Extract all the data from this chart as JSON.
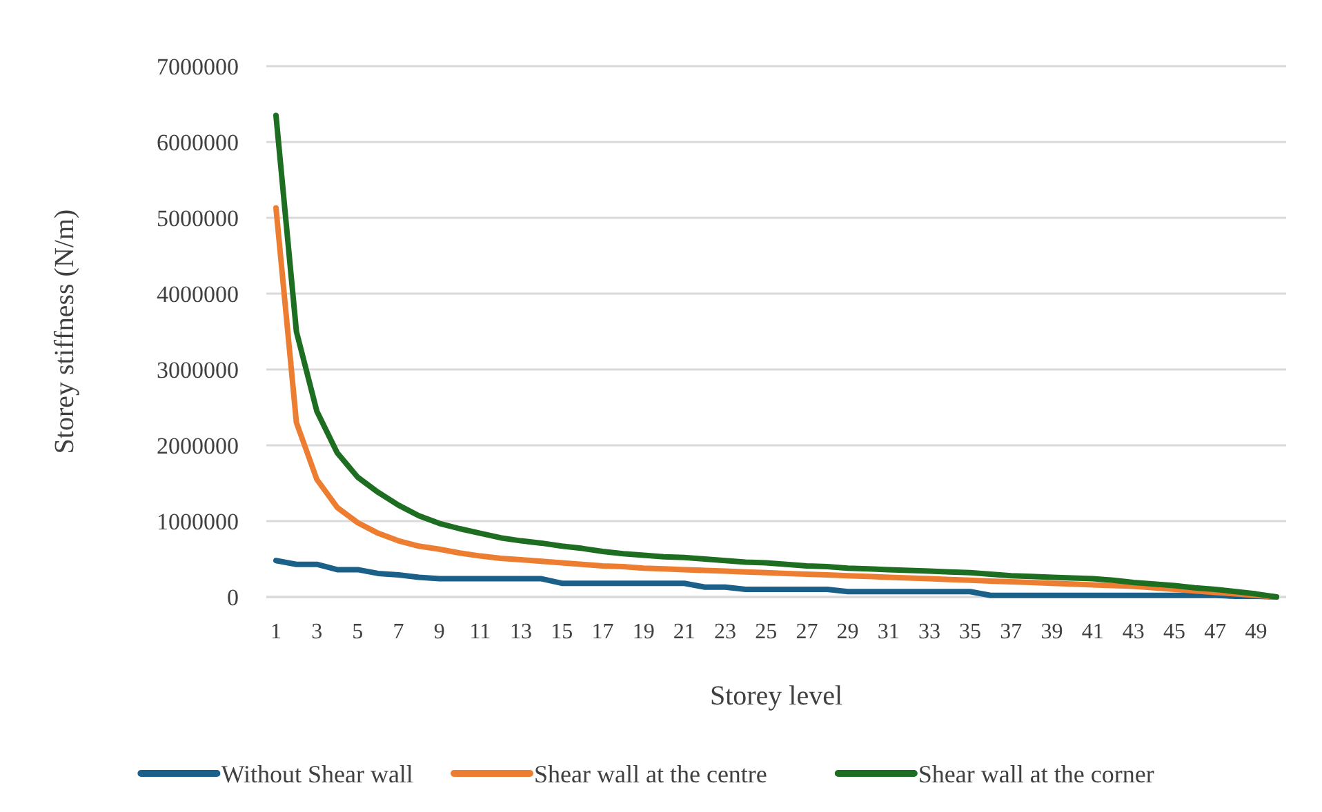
{
  "chart_data": {
    "type": "line",
    "xlabel": "Storey level",
    "ylabel": "Storey stiffness (N/m)",
    "x": [
      1,
      2,
      3,
      4,
      5,
      6,
      7,
      8,
      9,
      10,
      11,
      12,
      13,
      14,
      15,
      16,
      17,
      18,
      19,
      20,
      21,
      22,
      23,
      24,
      25,
      26,
      27,
      28,
      29,
      30,
      31,
      32,
      33,
      34,
      35,
      36,
      37,
      38,
      39,
      40,
      41,
      42,
      43,
      44,
      45,
      46,
      47,
      48,
      49,
      50
    ],
    "xlim": [
      1,
      50
    ],
    "xticks": [
      1,
      3,
      5,
      7,
      9,
      11,
      13,
      15,
      17,
      19,
      21,
      23,
      25,
      27,
      29,
      31,
      33,
      35,
      37,
      39,
      41,
      43,
      45,
      47,
      49
    ],
    "series": [
      {
        "name": "Without Shear wall",
        "color": "#1b6089",
        "values": [
          480000,
          430000,
          430000,
          360000,
          360000,
          310000,
          290000,
          260000,
          240000,
          240000,
          240000,
          240000,
          240000,
          240000,
          180000,
          180000,
          180000,
          180000,
          180000,
          180000,
          180000,
          130000,
          130000,
          100000,
          100000,
          100000,
          100000,
          100000,
          70000,
          70000,
          70000,
          70000,
          70000,
          70000,
          70000,
          20000,
          20000,
          20000,
          20000,
          20000,
          20000,
          20000,
          20000,
          20000,
          20000,
          20000,
          20000,
          10000,
          10000,
          0
        ]
      },
      {
        "name": "Shear wall at the centre",
        "color": "#ed7d31",
        "values": [
          5130000,
          2300000,
          1550000,
          1180000,
          980000,
          840000,
          740000,
          670000,
          630000,
          580000,
          540000,
          510000,
          490000,
          470000,
          450000,
          430000,
          410000,
          400000,
          380000,
          370000,
          360000,
          350000,
          340000,
          330000,
          320000,
          310000,
          300000,
          290000,
          280000,
          270000,
          260000,
          250000,
          240000,
          230000,
          220000,
          210000,
          200000,
          190000,
          180000,
          170000,
          160000,
          150000,
          140000,
          120000,
          100000,
          80000,
          60000,
          40000,
          20000,
          0
        ]
      },
      {
        "name": "Shear wall at the corner",
        "color": "#1e6e21",
        "values": [
          6350000,
          3500000,
          2450000,
          1900000,
          1580000,
          1380000,
          1210000,
          1070000,
          970000,
          900000,
          840000,
          780000,
          740000,
          710000,
          670000,
          640000,
          600000,
          570000,
          550000,
          530000,
          520000,
          500000,
          480000,
          460000,
          450000,
          430000,
          410000,
          400000,
          380000,
          370000,
          360000,
          350000,
          340000,
          330000,
          320000,
          300000,
          280000,
          270000,
          260000,
          250000,
          240000,
          220000,
          190000,
          170000,
          150000,
          120000,
          100000,
          70000,
          40000,
          0
        ]
      }
    ],
    "ylim": [
      0,
      7000000
    ],
    "yticks": [
      0,
      1000000,
      2000000,
      3000000,
      4000000,
      5000000,
      6000000,
      7000000
    ],
    "grid": "y",
    "legend": "bottom",
    "marker": "none",
    "line_style": "solid"
  }
}
